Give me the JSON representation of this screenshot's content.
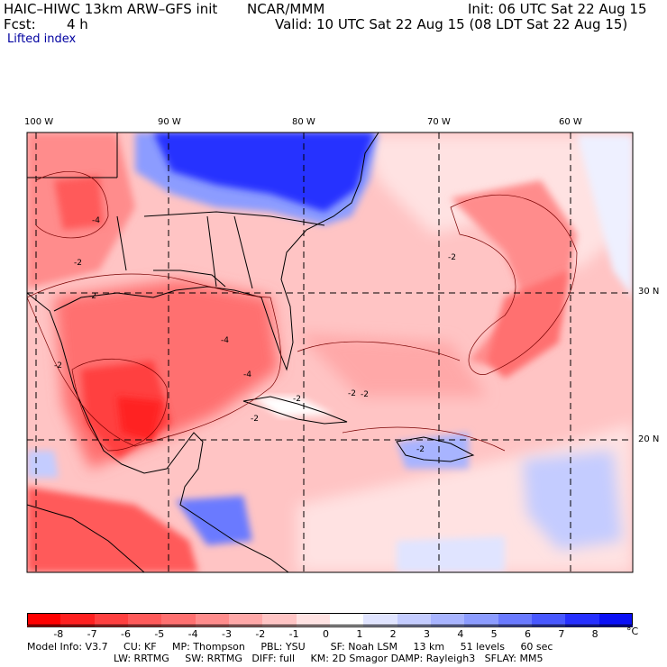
{
  "header": {
    "model": "HAIC–HIWC 13km ARW–GFS init",
    "org": "NCAR/MMM",
    "init": "Init: 06 UTC Sat 22 Aug 15",
    "fcst_label": "Fcst:",
    "fcst_value": "4 h",
    "valid": "Valid: 10 UTC Sat 22 Aug 15 (08 LDT Sat 22 Aug 15)",
    "field": "Lifted index"
  },
  "axes": {
    "lon_labels": [
      "100 W",
      "90 W",
      "80 W",
      "70 W",
      "60 W"
    ],
    "lat_labels": [
      "30 N",
      "20 N"
    ]
  },
  "contour_labels": [
    "-4",
    "-2",
    "-2",
    "-2",
    "-4",
    "-4",
    "-2",
    "-2",
    "-2",
    "-2",
    "-2",
    "-2"
  ],
  "colorbar": {
    "labels": [
      "-8",
      "-7",
      "-6",
      "-5",
      "-4",
      "-3",
      "-2",
      "-1",
      "0",
      "1",
      "2",
      "3",
      "4",
      "5",
      "6",
      "7",
      "8"
    ],
    "unit": "°C",
    "colors": [
      "#ff0000",
      "#ff2020",
      "#ff4040",
      "#ff5a5a",
      "#ff7070",
      "#ff8c8c",
      "#ffa8a8",
      "#ffc4c4",
      "#ffe2e2",
      "#ffffff",
      "#e0e4ff",
      "#c4ccff",
      "#a8b4ff",
      "#8c9cff",
      "#6a7aff",
      "#4858ff",
      "#2630ff",
      "#0a10f5"
    ]
  },
  "footer": {
    "line1": "Model Info: V3.7     CU: KF     MP: Thompson     PBL: YSU        SF: Noah LSM     13 km     51 levels     60 sec",
    "line2": "LW: RRTMG     SW: RRTMG   DIFF: full     KM: 2D Smagor DAMP: Rayleigh3   SFLAY: MM5"
  }
}
